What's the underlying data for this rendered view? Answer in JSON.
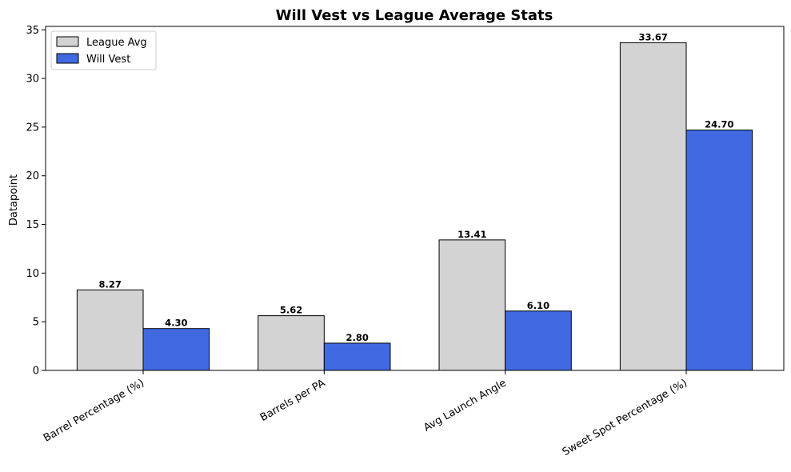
{
  "chart_data": {
    "type": "bar",
    "title": "Will Vest vs League Average Stats",
    "xlabel": "",
    "ylabel": "Datapoint",
    "categories": [
      "Barrel Percentage (%)",
      "Barrels per PA",
      "Avg Launch Angle",
      "Sweet Spot Percentage (%)"
    ],
    "series": [
      {
        "name": "League Avg",
        "color": "#d3d3d3",
        "values": [
          8.27,
          5.62,
          13.41,
          33.67
        ],
        "labels": [
          "8.27",
          "5.62",
          "13.41",
          "33.67"
        ]
      },
      {
        "name": "Will Vest",
        "color": "#4169e1",
        "values": [
          4.3,
          2.8,
          6.1,
          24.7
        ],
        "labels": [
          "4.30",
          "2.80",
          "6.10",
          "24.70"
        ]
      }
    ],
    "ylim": [
      0,
      35.35
    ],
    "yticks": [
      0,
      5,
      10,
      15,
      20,
      25,
      30,
      35
    ],
    "grid": false,
    "legend_position": "top-left"
  }
}
